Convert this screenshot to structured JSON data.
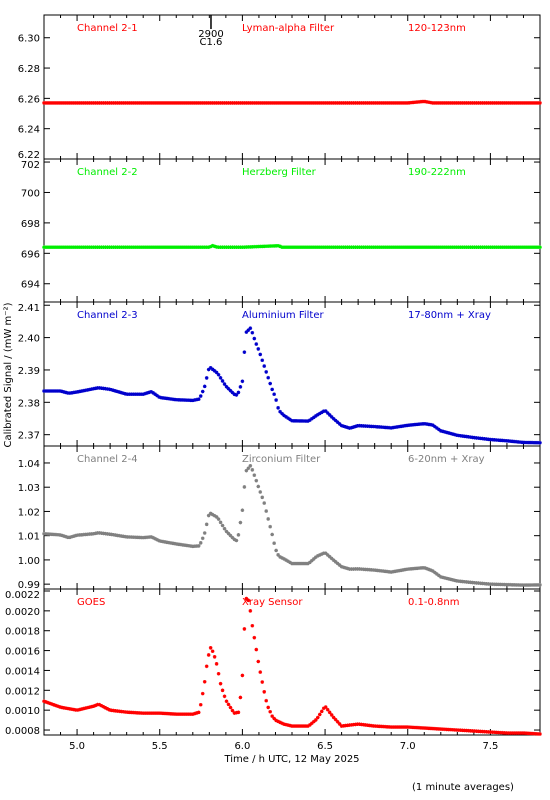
{
  "chart_data": [
    {
      "type": "scatter",
      "panel_labels": [
        "Channel 2-1",
        "Lyman-alpha Filter",
        "120-123nm"
      ],
      "color": "#ff0000",
      "ylim": [
        6.22,
        6.315
      ],
      "yticks": [
        "6.22",
        "6.24",
        "6.26",
        "6.28",
        "6.30"
      ],
      "yticks_values": [
        6.22,
        6.24,
        6.26,
        6.28,
        6.3
      ],
      "annotation": {
        "x": 5.81,
        "lines": [
          "2900",
          "C1.6"
        ]
      },
      "series": [
        {
          "x": [
            4.8,
            5.0,
            5.5,
            6.0,
            6.5,
            7.0,
            7.1,
            7.15,
            7.3,
            7.8
          ],
          "y": [
            6.257,
            6.257,
            6.257,
            6.257,
            6.257,
            6.257,
            6.258,
            6.257,
            6.257,
            6.257
          ]
        }
      ]
    },
    {
      "type": "scatter",
      "panel_labels": [
        "Channel 2-2",
        "Herzberg Filter",
        "190-222nm"
      ],
      "color": "#00ee00",
      "ylim": [
        692.8,
        702.2
      ],
      "yticks": [
        "694",
        "696",
        "698",
        "700",
        "702"
      ],
      "yticks_values": [
        694,
        696,
        698,
        700,
        702
      ],
      "series": [
        {
          "x": [
            4.8,
            5.0,
            5.5,
            5.8,
            5.82,
            5.85,
            6.0,
            6.22,
            6.24,
            6.5,
            7.0,
            7.5,
            7.8
          ],
          "y": [
            696.4,
            696.4,
            696.4,
            696.4,
            696.5,
            696.4,
            696.4,
            696.5,
            696.4,
            696.4,
            696.4,
            696.4,
            696.4
          ]
        }
      ]
    },
    {
      "type": "scatter",
      "panel_labels": [
        "Channel 2-3",
        "Aluminium Filter",
        "17-80nm + Xray"
      ],
      "color": "#0000cc",
      "ylim": [
        2.3665,
        2.411
      ],
      "yticks": [
        "2.37",
        "2.38",
        "2.39",
        "2.40",
        "2.41"
      ],
      "yticks_values": [
        2.37,
        2.38,
        2.39,
        2.4,
        2.41
      ],
      "series": [
        {
          "x": [
            4.8,
            4.9,
            4.95,
            5.0,
            5.1,
            5.13,
            5.2,
            5.3,
            5.4,
            5.45,
            5.5,
            5.6,
            5.7,
            5.74,
            5.77,
            5.8,
            5.85,
            5.9,
            5.95,
            5.97,
            6.0,
            6.02,
            6.05,
            6.08,
            6.1,
            6.13,
            6.15,
            6.18,
            6.2,
            6.22,
            6.25,
            6.3,
            6.4,
            6.45,
            6.5,
            6.55,
            6.6,
            6.65,
            6.7,
            6.8,
            6.9,
            7.0,
            7.1,
            7.15,
            7.2,
            7.3,
            7.4,
            7.5,
            7.6,
            7.7,
            7.8
          ],
          "y": [
            2.3835,
            2.3835,
            2.3828,
            2.3832,
            2.3842,
            2.3845,
            2.384,
            2.3825,
            2.3825,
            2.3833,
            2.3815,
            2.3808,
            2.3806,
            2.381,
            2.3845,
            2.391,
            2.389,
            2.385,
            2.3825,
            2.3822,
            2.3865,
            2.4015,
            2.403,
            2.3985,
            2.396,
            2.3915,
            2.3885,
            2.384,
            2.3815,
            2.3775,
            2.376,
            2.3743,
            2.3742,
            2.376,
            2.3775,
            2.375,
            2.3728,
            2.372,
            2.3728,
            2.3725,
            2.3721,
            2.3729,
            2.3734,
            2.373,
            2.3712,
            2.3698,
            2.3691,
            2.3685,
            2.3681,
            2.3676,
            2.3675
          ]
        }
      ]
    },
    {
      "type": "scatter",
      "panel_labels": [
        "Channel 2-4",
        "Zirconium Filter",
        "6-20nm + Xray"
      ],
      "color": "#808080",
      "ylim": [
        0.988,
        1.047
      ],
      "yticks": [
        "0.99",
        "1.00",
        "1.01",
        "1.02",
        "1.03",
        "1.04"
      ],
      "yticks_values": [
        0.99,
        1.0,
        1.01,
        1.02,
        1.03,
        1.04
      ],
      "series": [
        {
          "x": [
            4.8,
            4.9,
            4.95,
            5.0,
            5.1,
            5.13,
            5.2,
            5.3,
            5.4,
            5.45,
            5.5,
            5.6,
            5.7,
            5.74,
            5.77,
            5.8,
            5.85,
            5.9,
            5.95,
            5.97,
            6.0,
            6.02,
            6.05,
            6.08,
            6.1,
            6.13,
            6.15,
            6.18,
            6.2,
            6.22,
            6.25,
            6.3,
            6.4,
            6.45,
            6.5,
            6.55,
            6.6,
            6.65,
            6.7,
            6.8,
            6.9,
            7.0,
            7.1,
            7.15,
            7.2,
            7.3,
            7.4,
            7.5,
            7.6,
            7.7,
            7.8
          ],
          "y": [
            1.0108,
            1.0103,
            1.0092,
            1.0102,
            1.0108,
            1.0112,
            1.0106,
            1.0095,
            1.0092,
            1.0095,
            1.0078,
            1.0066,
            1.0056,
            1.0058,
            1.0105,
            1.0195,
            1.0175,
            1.012,
            1.0085,
            1.0078,
            1.0205,
            1.0365,
            1.039,
            1.0335,
            1.0295,
            1.024,
            1.0185,
            1.0105,
            1.0045,
            1.0015,
            1.0005,
            0.9985,
            0.9985,
            1.0015,
            1.003,
            1.0,
            0.9972,
            0.9962,
            0.9963,
            0.9958,
            0.995,
            0.9962,
            0.9968,
            0.9955,
            0.993,
            0.9913,
            0.9906,
            0.99,
            0.9898,
            0.9896,
            0.9897
          ]
        }
      ]
    },
    {
      "type": "scatter",
      "panel_labels": [
        "GOES",
        "Xray Sensor",
        "0.1-0.8nm"
      ],
      "color": "#ff0000",
      "ylim": [
        0.00075,
        0.00222
      ],
      "yticks": [
        "0.0008",
        "0.0010",
        "0.0012",
        "0.0014",
        "0.0016",
        "0.0018",
        "0.0020",
        "0.0022"
      ],
      "yticks_values": [
        0.0008,
        0.001,
        0.0012,
        0.0014,
        0.0016,
        0.0018,
        0.002,
        0.0022
      ],
      "series": [
        {
          "x": [
            4.8,
            4.9,
            5.0,
            5.1,
            5.13,
            5.2,
            5.3,
            5.4,
            5.5,
            5.6,
            5.7,
            5.74,
            5.77,
            5.79,
            5.81,
            5.84,
            5.87,
            5.9,
            5.95,
            5.98,
            6.0,
            6.02,
            6.04,
            6.06,
            6.08,
            6.1,
            6.13,
            6.15,
            6.18,
            6.2,
            6.25,
            6.3,
            6.4,
            6.45,
            6.5,
            6.55,
            6.6,
            6.7,
            6.8,
            6.9,
            7.0,
            7.1,
            7.2,
            7.3,
            7.4,
            7.5,
            7.6,
            7.7,
            7.8
          ],
          "y": [
            0.00109,
            0.00103,
            0.001,
            0.00104,
            0.00106,
            0.001,
            0.00098,
            0.00097,
            0.00097,
            0.00096,
            0.00096,
            0.00098,
            0.00126,
            0.00152,
            0.00164,
            0.0015,
            0.00125,
            0.0011,
            0.00097,
            0.00098,
            0.00135,
            0.00213,
            0.0021,
            0.00185,
            0.00165,
            0.00145,
            0.0012,
            0.00105,
            0.00094,
            0.0009,
            0.00086,
            0.00084,
            0.00084,
            0.00091,
            0.00104,
            0.00093,
            0.00084,
            0.00086,
            0.00084,
            0.00083,
            0.00083,
            0.00082,
            0.00081,
            0.0008,
            0.00079,
            0.00078,
            0.00077,
            0.00077,
            0.00076
          ]
        }
      ]
    }
  ],
  "x_axis": {
    "label": "Time / h UTC, 12 May 2025",
    "ticks": [
      "5.0",
      "5.5",
      "6.0",
      "6.5",
      "7.0",
      "7.5"
    ],
    "tick_values": [
      5.0,
      5.5,
      6.0,
      6.5,
      7.0,
      7.5
    ],
    "xlim": [
      4.8,
      7.8
    ]
  },
  "y_axis_label": "Calibrated Signal / (mW m⁻²)",
  "footnote": "(1 minute averages)"
}
